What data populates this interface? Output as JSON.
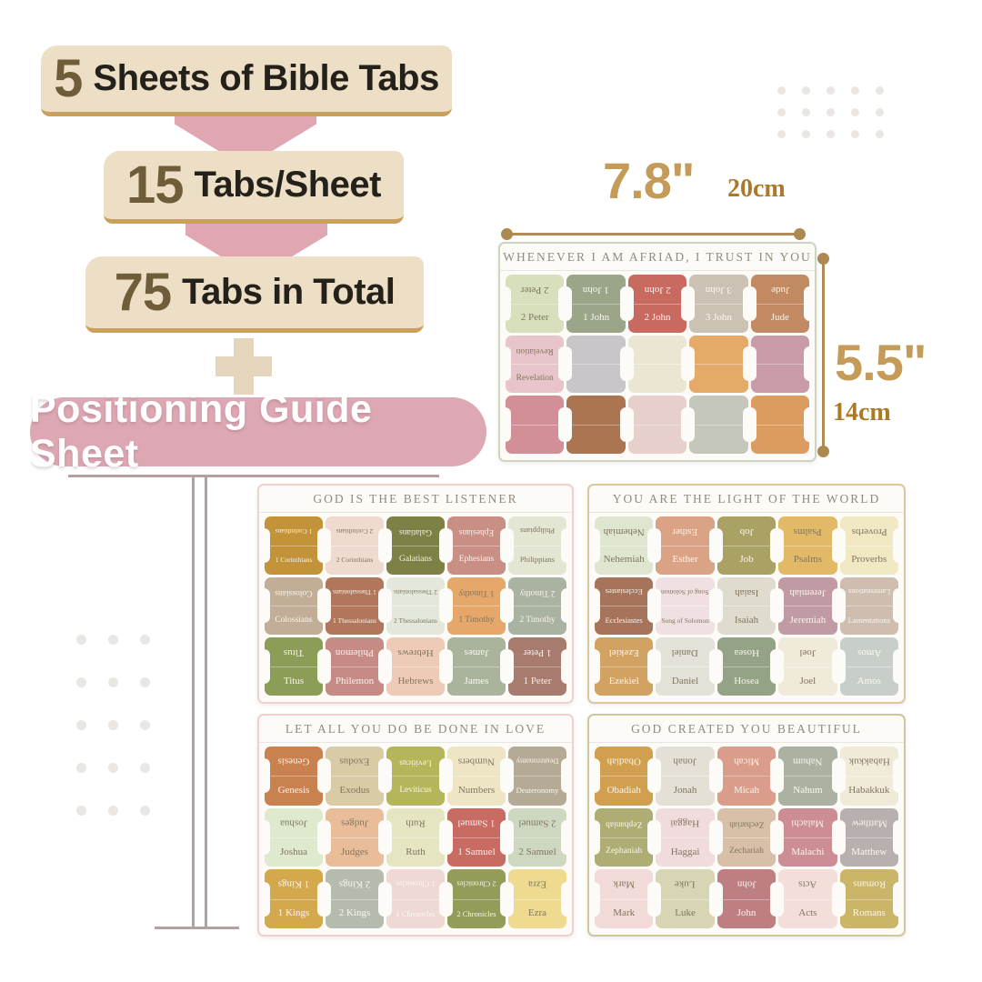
{
  "infographic": {
    "banners": [
      {
        "number": "5",
        "text": "Sheets of Bible Tabs"
      },
      {
        "number": "15",
        "text": "Tabs/Sheet"
      },
      {
        "number": "75",
        "text": "Tabs in Total"
      }
    ],
    "guide_banner": "Positioning Guide Sheet"
  },
  "dimensions": {
    "width_inch": "7.8\"",
    "width_cm": "20cm",
    "height_inch": "5.5\"",
    "height_cm": "14cm"
  },
  "colors": {
    "banner_bg": "#eddec6",
    "banner_accent": "#c9a05e",
    "banner_number": "#6f5c39",
    "pink": "#dda8b3",
    "measure_gold": "#b08c55",
    "dim_inch_gold": "#c49b58",
    "dim_cm_gold": "#ab7a28"
  },
  "sheets": [
    {
      "quote": "WHENEVER I AM AFRIAD, I TRUST IN YOU",
      "border_color": "#cdd4c0",
      "rows": [
        [
          {
            "label": "2 Peter",
            "color": "#d7dfbc",
            "text": "dark"
          },
          {
            "label": "1 John",
            "color": "#9ba689",
            "text": "light"
          },
          {
            "label": "2 John",
            "color": "#c96a60",
            "text": "light"
          },
          {
            "label": "3 John",
            "color": "#ccc2b4",
            "text": "light"
          },
          {
            "label": "Jude",
            "color": "#c18a63",
            "text": "light"
          }
        ],
        [
          {
            "label": "Revelation",
            "color": "#e8c5ca",
            "text": "dark"
          },
          {
            "label": "",
            "color": "#c9c5c9",
            "text": "dark"
          },
          {
            "label": "",
            "color": "#eae6d2",
            "text": "dark"
          },
          {
            "label": "",
            "color": "#e3aa69",
            "text": "dark"
          },
          {
            "label": "",
            "color": "#c89ba7",
            "text": "dark"
          }
        ],
        [
          {
            "label": "",
            "color": "#d28f97",
            "text": "dark"
          },
          {
            "label": "",
            "color": "#ab7551",
            "text": "dark"
          },
          {
            "label": "",
            "color": "#e7d0cc",
            "text": "dark"
          },
          {
            "label": "",
            "color": "#c4c7ba",
            "text": "dark"
          },
          {
            "label": "",
            "color": "#dd9c5f",
            "text": "dark"
          }
        ]
      ]
    },
    {
      "quote": "GOD IS THE BEST LISTENER",
      "border_color": "#eed2cd",
      "rows": [
        [
          {
            "label": "1 Corinthians",
            "color": "#c39339",
            "text": "light"
          },
          {
            "label": "2 Corinthians",
            "color": "#eedacf",
            "text": "dark"
          },
          {
            "label": "Galatians",
            "color": "#7e8146",
            "text": "light"
          },
          {
            "label": "Ephesians",
            "color": "#c98f85",
            "text": "light"
          },
          {
            "label": "Philippians",
            "color": "#e2e6d2",
            "text": "dark"
          }
        ],
        [
          {
            "label": "Colossians",
            "color": "#c2ad96",
            "text": "light"
          },
          {
            "label": "1 Thessalonians",
            "color": "#b1775d",
            "text": "light"
          },
          {
            "label": "2 Thessalonians",
            "color": "#e3e8da",
            "text": "dark"
          },
          {
            "label": "1 Timothy",
            "color": "#e6a76a",
            "text": "dark"
          },
          {
            "label": "2 Timothy",
            "color": "#aab2a2",
            "text": "light"
          }
        ],
        [
          {
            "label": "Titus",
            "color": "#8b9d56",
            "text": "light"
          },
          {
            "label": "Philemon",
            "color": "#c68b85",
            "text": "light"
          },
          {
            "label": "Hebrews",
            "color": "#eecbb7",
            "text": "dark"
          },
          {
            "label": "James",
            "color": "#aab49d",
            "text": "light"
          },
          {
            "label": "1 Peter",
            "color": "#a77b6e",
            "text": "light"
          }
        ]
      ]
    },
    {
      "quote": "YOU ARE THE LIGHT OF THE WORLD",
      "border_color": "#dbc69e",
      "rows": [
        [
          {
            "label": "Nehemiah",
            "color": "#dfe6cf",
            "text": "dark"
          },
          {
            "label": "Esther",
            "color": "#dba385",
            "text": "light"
          },
          {
            "label": "Job",
            "color": "#aaa265",
            "text": "light"
          },
          {
            "label": "Psalms",
            "color": "#e2b967",
            "text": "dark"
          },
          {
            "label": "Proverbs",
            "color": "#f0e8c2",
            "text": "dark"
          }
        ],
        [
          {
            "label": "Ecclesiastes",
            "color": "#a5745b",
            "text": "light"
          },
          {
            "label": "Song of Solomon",
            "color": "#f0e0e1",
            "text": "dark"
          },
          {
            "label": "Isaiah",
            "color": "#dfdbce",
            "text": "dark"
          },
          {
            "label": "Jeremiah",
            "color": "#c09ba3",
            "text": "light"
          },
          {
            "label": "Lamentations",
            "color": "#cfbdb0",
            "text": "light"
          }
        ],
        [
          {
            "label": "Ezekiel",
            "color": "#d1a262",
            "text": "light"
          },
          {
            "label": "Daniel",
            "color": "#e4e1d8",
            "text": "dark"
          },
          {
            "label": "Hosea",
            "color": "#94a285",
            "text": "light"
          },
          {
            "label": "Joel",
            "color": "#f0eadb",
            "text": "dark"
          },
          {
            "label": "Amos",
            "color": "#c8cfc8",
            "text": "light"
          }
        ]
      ]
    },
    {
      "quote": "LET ALL YOU DO BE DONE IN LOVE",
      "border_color": "#f2cfca",
      "rows": [
        [
          {
            "label": "Genesis",
            "color": "#ca8150",
            "text": "light"
          },
          {
            "label": "Exodus",
            "color": "#d8cba6",
            "text": "dark"
          },
          {
            "label": "Leviticus",
            "color": "#b5b65a",
            "text": "light"
          },
          {
            "label": "Numbers",
            "color": "#eee5c5",
            "text": "dark"
          },
          {
            "label": "Deuteronomy",
            "color": "#b5aa96",
            "text": "light"
          }
        ],
        [
          {
            "label": "Joshua",
            "color": "#dee9ce",
            "text": "dark"
          },
          {
            "label": "Judges",
            "color": "#e9bd99",
            "text": "dark"
          },
          {
            "label": "Ruth",
            "color": "#e5e5c2",
            "text": "dark"
          },
          {
            "label": "1 Samuel",
            "color": "#c86b63",
            "text": "light"
          },
          {
            "label": "2 Samuel",
            "color": "#ced8c0",
            "text": "dark"
          }
        ],
        [
          {
            "label": "1 Kings",
            "color": "#d4a94d",
            "text": "light"
          },
          {
            "label": "2 Kings",
            "color": "#b5bcae",
            "text": "light"
          },
          {
            "label": "1 Chronicles",
            "color": "#eed9d4",
            "text": "light"
          },
          {
            "label": "2 Chronicles",
            "color": "#959c5a",
            "text": "light"
          },
          {
            "label": "Ezra",
            "color": "#eedb90",
            "text": "dark"
          }
        ]
      ]
    },
    {
      "quote": "GOD CREATED YOU BEAUTIFUL",
      "border_color": "#d1c69c",
      "rows": [
        [
          {
            "label": "Obadiah",
            "color": "#d19f50",
            "text": "light"
          },
          {
            "label": "Jonah",
            "color": "#e5e0d6",
            "text": "dark"
          },
          {
            "label": "Micah",
            "color": "#da9c8b",
            "text": "light"
          },
          {
            "label": "Nahum",
            "color": "#abb2a2",
            "text": "light"
          },
          {
            "label": "Habakkuk",
            "color": "#f0ead8",
            "text": "dark"
          }
        ],
        [
          {
            "label": "Zephaniah",
            "color": "#aead74",
            "text": "light"
          },
          {
            "label": "Haggai",
            "color": "#f0dcdd",
            "text": "dark"
          },
          {
            "label": "Zechariah",
            "color": "#d8bfa7",
            "text": "dark"
          },
          {
            "label": "Malachi",
            "color": "#cc8d94",
            "text": "light"
          },
          {
            "label": "Matthew",
            "color": "#b7b0ae",
            "text": "light"
          }
        ],
        [
          {
            "label": "Mark",
            "color": "#f2dad9",
            "text": "dark"
          },
          {
            "label": "Luke",
            "color": "#d8d5b4",
            "text": "dark"
          },
          {
            "label": "John",
            "color": "#bd7f82",
            "text": "light"
          },
          {
            "label": "Acts",
            "color": "#f4ded9",
            "text": "dark"
          },
          {
            "label": "Romans",
            "color": "#cbb568",
            "text": "light"
          }
        ]
      ]
    }
  ]
}
